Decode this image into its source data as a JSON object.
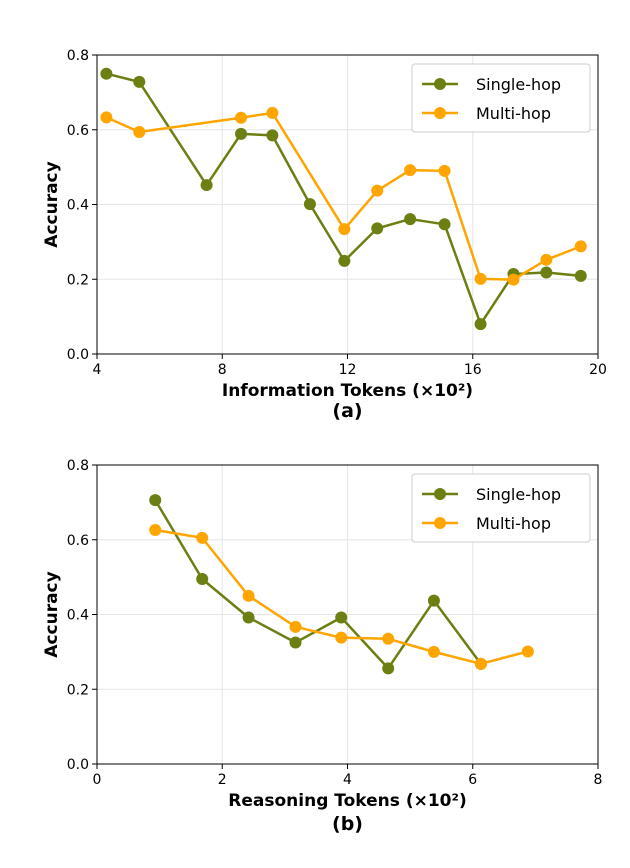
{
  "colors": {
    "single": "#6b7f12",
    "multi": "#ffa500"
  },
  "chart_data": [
    {
      "type": "line",
      "caption": "(a)",
      "xlabel": "Information Tokens (×10²)",
      "ylabel": "Accuracy",
      "xlim": [
        4,
        20
      ],
      "ylim": [
        0,
        0.8
      ],
      "xticks": [
        4,
        8,
        12,
        16,
        20
      ],
      "yticks": [
        0.0,
        0.2,
        0.4,
        0.6,
        0.8
      ],
      "xtick_labels": [
        "4",
        "8",
        "12",
        "16",
        "20"
      ],
      "ytick_labels": [
        "0.0",
        "0.2",
        "0.4",
        "0.6",
        "0.8"
      ],
      "legend": {
        "position": "top-right"
      },
      "series": [
        {
          "name": "Single-hop",
          "color_key": "single",
          "x": [
            4.3,
            5.35,
            7.5,
            8.6,
            9.6,
            10.8,
            11.9,
            12.95,
            14.0,
            15.1,
            16.25,
            17.3,
            18.35,
            19.45
          ],
          "y": [
            0.75,
            0.728,
            0.452,
            0.589,
            0.585,
            0.401,
            0.249,
            0.336,
            0.361,
            0.347,
            0.08,
            0.214,
            0.218,
            0.209
          ]
        },
        {
          "name": "Multi-hop",
          "color_key": "multi",
          "x": [
            4.3,
            5.35,
            8.6,
            9.6,
            11.9,
            12.95,
            14.0,
            15.1,
            16.25,
            17.3,
            18.35,
            19.45
          ],
          "y": [
            0.633,
            0.594,
            0.632,
            0.645,
            0.334,
            0.437,
            0.492,
            0.49,
            0.201,
            0.199,
            0.252,
            0.288
          ]
        }
      ]
    },
    {
      "type": "line",
      "caption": "(b)",
      "xlabel": "Reasoning Tokens (×10²)",
      "ylabel": "Accuracy",
      "xlim": [
        0,
        8
      ],
      "ylim": [
        0,
        0.8
      ],
      "xticks": [
        0,
        2,
        4,
        6,
        8
      ],
      "yticks": [
        0.0,
        0.2,
        0.4,
        0.6,
        0.8
      ],
      "xtick_labels": [
        "0",
        "2",
        "4",
        "6",
        "8"
      ],
      "ytick_labels": [
        "0.0",
        "0.2",
        "0.4",
        "0.6",
        "0.8"
      ],
      "legend": {
        "position": "top-right"
      },
      "series": [
        {
          "name": "Single-hop",
          "color_key": "single",
          "x": [
            0.93,
            1.68,
            2.42,
            3.17,
            3.9,
            4.65,
            5.38,
            6.13
          ],
          "y": [
            0.706,
            0.495,
            0.392,
            0.325,
            0.392,
            0.256,
            0.437,
            0.268
          ]
        },
        {
          "name": "Multi-hop",
          "color_key": "multi",
          "x": [
            0.93,
            1.68,
            2.42,
            3.17,
            3.9,
            4.65,
            5.38,
            6.13,
            6.88
          ],
          "y": [
            0.626,
            0.605,
            0.45,
            0.367,
            0.338,
            0.335,
            0.3,
            0.268,
            0.301
          ]
        }
      ]
    }
  ]
}
